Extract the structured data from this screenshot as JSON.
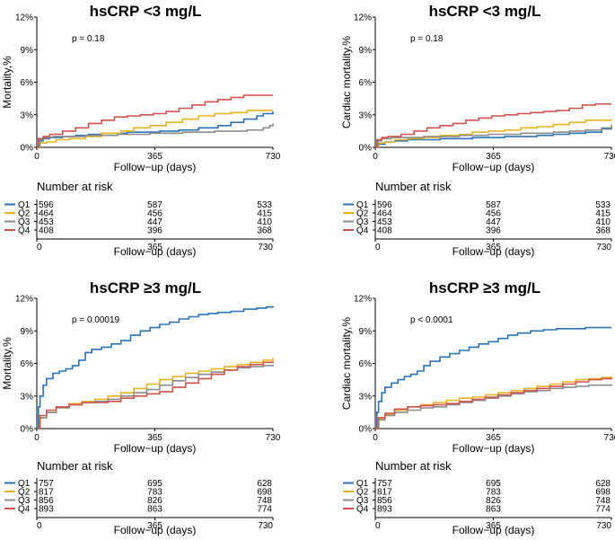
{
  "chart_data": [
    {
      "type": "line",
      "subtype": "kaplan-meier",
      "title": "hsCRP <3 mg/L",
      "xlabel": "Follow−up (days)",
      "ylabel": "Mortality,%",
      "xlim": [
        0,
        730
      ],
      "ylim": [
        0,
        12
      ],
      "xticks": [
        "0",
        "365",
        "730"
      ],
      "yticks": [
        "0%",
        "3%",
        "6%",
        "9%",
        "12%"
      ],
      "annotation": "p = 0.18",
      "series": [
        {
          "name": "Q1",
          "color": "#2a73b5",
          "x": [
            0,
            10,
            20,
            40,
            80,
            120,
            160,
            200,
            240,
            280,
            320,
            380,
            440,
            500,
            560,
            600,
            640,
            680,
            700,
            730
          ],
          "y": [
            0,
            0.6,
            0.8,
            0.9,
            1.0,
            1.1,
            1.2,
            1.3,
            1.3,
            1.4,
            1.4,
            1.5,
            1.6,
            1.8,
            2.0,
            2.3,
            2.6,
            2.9,
            3.1,
            3.3
          ]
        },
        {
          "name": "Q2",
          "color": "#e8b423",
          "x": [
            0,
            10,
            30,
            60,
            100,
            150,
            200,
            260,
            300,
            350,
            400,
            450,
            500,
            550,
            600,
            650,
            730
          ],
          "y": [
            0,
            0.4,
            0.5,
            0.7,
            0.8,
            1.0,
            1.3,
            1.5,
            1.8,
            2.0,
            2.3,
            2.6,
            2.9,
            3.1,
            3.2,
            3.4,
            3.4
          ]
        },
        {
          "name": "Q3",
          "color": "#8c8c8c",
          "x": [
            0,
            8,
            20,
            50,
            100,
            150,
            200,
            250,
            300,
            350,
            400,
            450,
            500,
            550,
            600,
            650,
            700,
            720,
            730
          ],
          "y": [
            0,
            0.7,
            0.9,
            1.0,
            1.0,
            1.1,
            1.1,
            1.2,
            1.2,
            1.3,
            1.3,
            1.4,
            1.4,
            1.5,
            1.5,
            1.6,
            1.8,
            2.0,
            2.2
          ]
        },
        {
          "name": "Q4",
          "color": "#d0534d",
          "x": [
            0,
            5,
            20,
            40,
            80,
            120,
            160,
            200,
            240,
            280,
            320,
            360,
            400,
            440,
            480,
            520,
            560,
            600,
            640,
            680,
            730
          ],
          "y": [
            0,
            0.8,
            1.0,
            1.2,
            1.5,
            1.8,
            2.2,
            2.5,
            2.8,
            2.9,
            3.0,
            3.1,
            3.3,
            3.6,
            3.9,
            4.2,
            4.4,
            4.6,
            4.8,
            4.8,
            4.8
          ]
        }
      ],
      "risk_table": {
        "heading": "Number at risk",
        "xlabel": "Follow−up (days)",
        "xticks": [
          "0",
          "365",
          "730"
        ],
        "rows": [
          {
            "group": "Q1",
            "color": "#2a73b5",
            "counts": [
              "596",
              "587",
              "533"
            ]
          },
          {
            "group": "Q2",
            "color": "#e8b423",
            "counts": [
              "464",
              "456",
              "415"
            ]
          },
          {
            "group": "Q3",
            "color": "#8c8c8c",
            "counts": [
              "453",
              "447",
              "410"
            ]
          },
          {
            "group": "Q4",
            "color": "#d0534d",
            "counts": [
              "408",
              "396",
              "368"
            ]
          }
        ]
      }
    },
    {
      "type": "line",
      "subtype": "kaplan-meier",
      "title": "hsCRP <3 mg/L",
      "xlabel": "Follow−up (days)",
      "ylabel": "Cardiac mortality,%",
      "xlim": [
        0,
        730
      ],
      "ylim": [
        0,
        12
      ],
      "xticks": [
        "0",
        "365",
        "730"
      ],
      "yticks": [
        "0%",
        "3%",
        "6%",
        "9%",
        "12%"
      ],
      "annotation": "p = 0.18",
      "series": [
        {
          "name": "Q1",
          "color": "#2a73b5",
          "x": [
            0,
            10,
            30,
            60,
            100,
            150,
            200,
            260,
            300,
            350,
            400,
            450,
            500,
            550,
            600,
            650,
            700,
            730
          ],
          "y": [
            0,
            0.3,
            0.5,
            0.6,
            0.7,
            0.7,
            0.8,
            0.8,
            0.9,
            0.9,
            1.0,
            1.0,
            1.1,
            1.2,
            1.3,
            1.4,
            1.7,
            1.9
          ]
        },
        {
          "name": "Q2",
          "color": "#e8b423",
          "x": [
            0,
            10,
            30,
            60,
            100,
            150,
            200,
            260,
            300,
            350,
            400,
            450,
            500,
            550,
            600,
            650,
            730
          ],
          "y": [
            0,
            0.4,
            0.5,
            0.7,
            0.8,
            0.9,
            1.1,
            1.2,
            1.4,
            1.5,
            1.6,
            1.8,
            1.9,
            2.1,
            2.3,
            2.5,
            2.6
          ]
        },
        {
          "name": "Q3",
          "color": "#8c8c8c",
          "x": [
            0,
            8,
            20,
            50,
            100,
            150,
            200,
            260,
            300,
            350,
            400,
            450,
            500,
            550,
            600,
            650,
            700,
            730
          ],
          "y": [
            0,
            0.6,
            0.8,
            0.9,
            0.9,
            1.0,
            1.0,
            1.1,
            1.1,
            1.2,
            1.2,
            1.3,
            1.3,
            1.4,
            1.5,
            1.6,
            1.8,
            2.1
          ]
        },
        {
          "name": "Q4",
          "color": "#d0534d",
          "x": [
            0,
            5,
            20,
            40,
            80,
            120,
            160,
            200,
            240,
            280,
            320,
            360,
            400,
            440,
            480,
            520,
            560,
            600,
            640,
            680,
            730
          ],
          "y": [
            0,
            0.7,
            0.9,
            1.0,
            1.2,
            1.5,
            1.8,
            2.0,
            2.2,
            2.5,
            2.7,
            2.9,
            3.0,
            3.1,
            3.2,
            3.3,
            3.4,
            3.6,
            3.9,
            4.0,
            4.0
          ]
        }
      ],
      "risk_table": {
        "heading": "Number at risk",
        "xlabel": "Follow−up (days)",
        "xticks": [
          "0",
          "365",
          "730"
        ],
        "rows": [
          {
            "group": "Q1",
            "color": "#2a73b5",
            "counts": [
              "596",
              "587",
              "533"
            ]
          },
          {
            "group": "Q2",
            "color": "#e8b423",
            "counts": [
              "464",
              "456",
              "415"
            ]
          },
          {
            "group": "Q3",
            "color": "#8c8c8c",
            "counts": [
              "453",
              "447",
              "410"
            ]
          },
          {
            "group": "Q4",
            "color": "#d0534d",
            "counts": [
              "408",
              "396",
              "368"
            ]
          }
        ]
      }
    },
    {
      "type": "line",
      "subtype": "kaplan-meier",
      "title": "hsCRP ≥3 mg/L",
      "xlabel": "Follow−up (days)",
      "ylabel": "Mortality,%",
      "xlim": [
        0,
        730
      ],
      "ylim": [
        0,
        12
      ],
      "xticks": [
        "0",
        "365",
        "730"
      ],
      "yticks": [
        "0%",
        "3%",
        "6%",
        "9%",
        "12%"
      ],
      "annotation": "p = 0.00019",
      "series": [
        {
          "name": "Q1",
          "color": "#2a73b5",
          "x": [
            0,
            5,
            10,
            20,
            30,
            50,
            70,
            90,
            110,
            130,
            150,
            170,
            200,
            230,
            260,
            290,
            320,
            350,
            380,
            410,
            440,
            470,
            500,
            530,
            560,
            600,
            640,
            680,
            710,
            730
          ],
          "y": [
            0,
            2.0,
            3.0,
            4.0,
            4.6,
            5.1,
            5.3,
            5.5,
            5.8,
            6.3,
            7.0,
            7.3,
            7.5,
            7.8,
            8.1,
            8.6,
            9.0,
            9.3,
            9.6,
            9.8,
            10.1,
            10.3,
            10.5,
            10.6,
            10.7,
            10.8,
            11.0,
            11.1,
            11.2,
            11.3
          ]
        },
        {
          "name": "Q2",
          "color": "#e8b423",
          "x": [
            0,
            10,
            30,
            60,
            100,
            140,
            180,
            220,
            260,
            300,
            340,
            380,
            420,
            460,
            500,
            540,
            580,
            620,
            660,
            700,
            730
          ],
          "y": [
            0,
            1.0,
            1.5,
            2.0,
            2.3,
            2.5,
            2.7,
            3.0,
            3.3,
            3.7,
            4.1,
            4.5,
            4.8,
            5.1,
            5.3,
            5.5,
            5.7,
            5.9,
            6.1,
            6.3,
            6.5
          ]
        },
        {
          "name": "Q3",
          "color": "#8c8c8c",
          "x": [
            0,
            10,
            30,
            60,
            100,
            140,
            180,
            220,
            260,
            300,
            340,
            380,
            420,
            460,
            500,
            540,
            580,
            620,
            660,
            700,
            730
          ],
          "y": [
            0,
            1.0,
            1.5,
            1.9,
            2.2,
            2.4,
            2.5,
            2.7,
            3.0,
            3.3,
            3.6,
            4.0,
            4.4,
            4.7,
            5.0,
            5.2,
            5.4,
            5.6,
            5.7,
            5.8,
            5.9
          ]
        },
        {
          "name": "Q4",
          "color": "#d0534d",
          "x": [
            0,
            10,
            30,
            60,
            100,
            140,
            180,
            220,
            260,
            300,
            340,
            380,
            420,
            460,
            500,
            540,
            580,
            620,
            660,
            700,
            730
          ],
          "y": [
            0,
            1.2,
            1.7,
            2.0,
            2.2,
            2.4,
            2.4,
            2.5,
            2.8,
            3.0,
            3.2,
            3.4,
            3.8,
            4.2,
            4.6,
            5.0,
            5.4,
            5.7,
            5.9,
            6.1,
            6.2
          ]
        }
      ],
      "risk_table": {
        "heading": "Number at risk",
        "xlabel": "Follow−up (days)",
        "xticks": [
          "0",
          "365",
          "730"
        ],
        "rows": [
          {
            "group": "Q1",
            "color": "#2a73b5",
            "counts": [
              "757",
              "695",
              "628"
            ]
          },
          {
            "group": "Q2",
            "color": "#e8b423",
            "counts": [
              "817",
              "783",
              "698"
            ]
          },
          {
            "group": "Q3",
            "color": "#8c8c8c",
            "counts": [
              "856",
              "826",
              "748"
            ]
          },
          {
            "group": "Q4",
            "color": "#d0534d",
            "counts": [
              "893",
              "863",
              "774"
            ]
          }
        ]
      }
    },
    {
      "type": "line",
      "subtype": "kaplan-meier",
      "title": "hsCRP ≥3 mg/L",
      "xlabel": "Follow−up (days)",
      "ylabel": "Cardiac mortality,%",
      "xlim": [
        0,
        730
      ],
      "ylim": [
        0,
        12
      ],
      "xticks": [
        "0",
        "365",
        "730"
      ],
      "yticks": [
        "0%",
        "3%",
        "6%",
        "9%",
        "12%"
      ],
      "annotation": "p < 0.0001",
      "series": [
        {
          "name": "Q1",
          "color": "#2a73b5",
          "x": [
            0,
            5,
            10,
            20,
            30,
            50,
            70,
            90,
            110,
            130,
            150,
            170,
            200,
            230,
            260,
            290,
            320,
            350,
            380,
            410,
            440,
            480,
            520,
            560,
            600,
            650,
            700,
            730
          ],
          "y": [
            0,
            1.5,
            2.5,
            3.3,
            3.8,
            4.2,
            4.5,
            4.8,
            5.0,
            5.3,
            5.8,
            6.2,
            6.6,
            6.9,
            7.2,
            7.5,
            7.8,
            8.0,
            8.3,
            8.6,
            8.8,
            9.0,
            9.1,
            9.2,
            9.2,
            9.3,
            9.3,
            9.3
          ]
        },
        {
          "name": "Q2",
          "color": "#e8b423",
          "x": [
            0,
            10,
            30,
            60,
            100,
            140,
            180,
            220,
            260,
            300,
            340,
            380,
            420,
            460,
            500,
            540,
            580,
            620,
            660,
            700,
            730
          ],
          "y": [
            0,
            0.9,
            1.3,
            1.7,
            2.0,
            2.2,
            2.4,
            2.6,
            2.8,
            2.9,
            3.1,
            3.3,
            3.5,
            3.7,
            3.9,
            4.1,
            4.3,
            4.5,
            4.6,
            4.7,
            4.8
          ]
        },
        {
          "name": "Q3",
          "color": "#8c8c8c",
          "x": [
            0,
            10,
            30,
            60,
            100,
            140,
            180,
            220,
            260,
            300,
            340,
            380,
            420,
            460,
            500,
            540,
            580,
            620,
            660,
            700,
            730
          ],
          "y": [
            0,
            0.8,
            1.2,
            1.5,
            1.7,
            1.9,
            2.0,
            2.2,
            2.4,
            2.6,
            2.8,
            3.0,
            3.2,
            3.4,
            3.5,
            3.7,
            3.8,
            3.9,
            4.0,
            4.0,
            4.1
          ]
        },
        {
          "name": "Q4",
          "color": "#d0534d",
          "x": [
            0,
            10,
            30,
            60,
            100,
            140,
            180,
            220,
            260,
            300,
            340,
            380,
            420,
            460,
            500,
            540,
            580,
            620,
            660,
            700,
            730
          ],
          "y": [
            0,
            1.0,
            1.4,
            1.8,
            2.0,
            2.1,
            2.2,
            2.3,
            2.5,
            2.7,
            2.9,
            3.1,
            3.3,
            3.5,
            3.7,
            3.9,
            4.1,
            4.3,
            4.5,
            4.6,
            4.7
          ]
        }
      ],
      "risk_table": {
        "heading": "Number at risk",
        "xlabel": "Follow−up (days)",
        "xticks": [
          "0",
          "365",
          "730"
        ],
        "rows": [
          {
            "group": "Q1",
            "color": "#2a73b5",
            "counts": [
              "757",
              "695",
              "628"
            ]
          },
          {
            "group": "Q2",
            "color": "#e8b423",
            "counts": [
              "817",
              "783",
              "698"
            ]
          },
          {
            "group": "Q3",
            "color": "#8c8c8c",
            "counts": [
              "856",
              "826",
              "748"
            ]
          },
          {
            "group": "Q4",
            "color": "#d0534d",
            "counts": [
              "893",
              "863",
              "774"
            ]
          }
        ]
      }
    }
  ]
}
